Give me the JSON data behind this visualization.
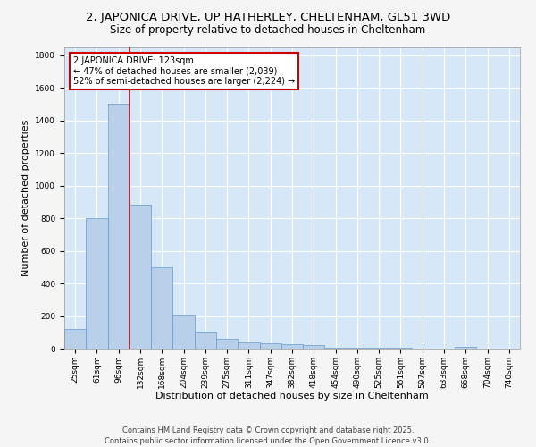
{
  "title_line1": "2, JAPONICA DRIVE, UP HATHERLEY, CHELTENHAM, GL51 3WD",
  "title_line2": "Size of property relative to detached houses in Cheltenham",
  "xlabel": "Distribution of detached houses by size in Cheltenham",
  "ylabel": "Number of detached properties",
  "categories": [
    "25sqm",
    "61sqm",
    "96sqm",
    "132sqm",
    "168sqm",
    "204sqm",
    "239sqm",
    "275sqm",
    "311sqm",
    "347sqm",
    "382sqm",
    "418sqm",
    "454sqm",
    "490sqm",
    "525sqm",
    "561sqm",
    "597sqm",
    "633sqm",
    "668sqm",
    "704sqm",
    "740sqm"
  ],
  "values": [
    120,
    800,
    1500,
    880,
    500,
    210,
    105,
    62,
    40,
    35,
    25,
    20,
    8,
    5,
    4,
    3,
    2,
    2,
    10,
    2,
    1
  ],
  "bar_color": "#b8d0ea",
  "bar_edge_color": "#6699cc",
  "vline_x_index": 2.5,
  "vline_color": "#cc0000",
  "annotation_text": "2 JAPONICA DRIVE: 123sqm\n← 47% of detached houses are smaller (2,039)\n52% of semi-detached houses are larger (2,224) →",
  "annotation_box_color": "#cc0000",
  "ylim": [
    0,
    1850
  ],
  "yticks": [
    0,
    200,
    400,
    600,
    800,
    1000,
    1200,
    1400,
    1600,
    1800
  ],
  "background_color": "#d6e8f7",
  "grid_color": "#ffffff",
  "fig_background": "#f5f5f5",
  "footer_line1": "Contains HM Land Registry data © Crown copyright and database right 2025.",
  "footer_line2": "Contains public sector information licensed under the Open Government Licence v3.0.",
  "title_fontsize": 9.5,
  "subtitle_fontsize": 8.5,
  "axis_label_fontsize": 8,
  "tick_fontsize": 6.5,
  "footer_fontsize": 6,
  "annot_fontsize": 7
}
